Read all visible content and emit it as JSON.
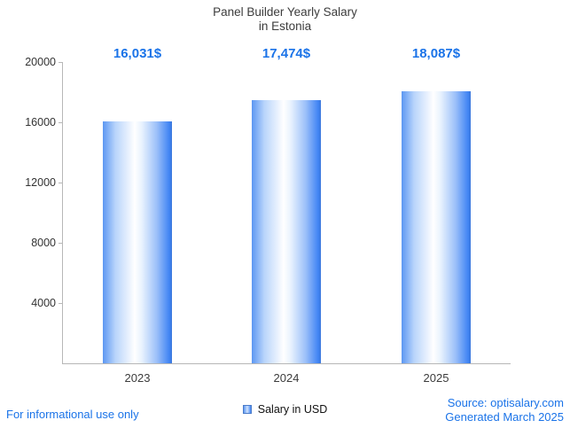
{
  "header": {
    "title_line1": "Panel Builder Yearly Salary",
    "title_line2": "in Estonia"
  },
  "chart_data": {
    "type": "bar",
    "title": "Panel Builder Yearly Salary in Estonia",
    "categories": [
      "2023",
      "2024",
      "2025"
    ],
    "values": [
      16031,
      17474,
      18087
    ],
    "value_labels": [
      "16,031$",
      "17,474$",
      "18,087$"
    ],
    "ylim": [
      0,
      20000
    ],
    "yticks_display": [
      "20000",
      "16000",
      "12000",
      "8000",
      "4000"
    ],
    "xlabel": "",
    "ylabel": "",
    "grid": false,
    "legend": [
      {
        "label": "Salary in USD",
        "color": "#6d9eeb"
      }
    ],
    "legend_position": "bottom-center"
  },
  "footer": {
    "disclaimer": "For informational use only",
    "source": "Source: optisalary.com",
    "generated": "Generated March 2025"
  },
  "colors": {
    "value_label": "#1a73e8",
    "footer_text": "#1a73e8",
    "bar_gradient_edge": "#4285f4",
    "bar_gradient_mid": "#ffffff",
    "axis_line": "#b7b7b7",
    "title_text": "#3c3c3c",
    "tick_text": "#333333"
  }
}
